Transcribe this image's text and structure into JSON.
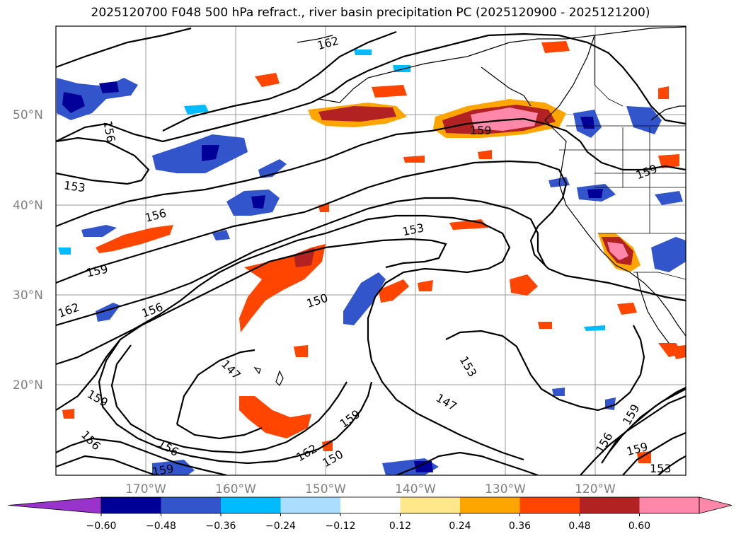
{
  "title": "2025120700 F048 500 hPa refract., river basin precipitation PC (2025120900 - 2025121200)",
  "chart_data": {
    "type": "map",
    "variables": {
      "contours": "500 hPa refractivity",
      "filled": "river basin precipitation PC"
    },
    "latitude_labels": [
      "50°N",
      "40°N",
      "30°N",
      "20°N"
    ],
    "longitude_labels": [
      "170°W",
      "160°W",
      "150°W",
      "140°W",
      "130°W",
      "120°W"
    ],
    "contour_labels": [
      "162",
      "156",
      "153",
      "156",
      "159",
      "162",
      "156",
      "150",
      "153",
      "159",
      "159",
      "147",
      "159",
      "156",
      "156",
      "159",
      "159",
      "162",
      "150",
      "147",
      "153",
      "156",
      "159",
      "153",
      "159"
    ],
    "colorbar": {
      "ticks": [
        "−0.60",
        "−0.48",
        "−0.36",
        "−0.24",
        "−0.12",
        "0.12",
        "0.24",
        "0.36",
        "0.48",
        "0.60"
      ],
      "colors": [
        "#9933cc",
        "#000099",
        "#3355cc",
        "#00bbff",
        "#aaddff",
        "#ffffff",
        "#ffe88a",
        "#ffa500",
        "#ff4500",
        "#b22222",
        "#ff88aa",
        "#ff88aa"
      ]
    }
  }
}
